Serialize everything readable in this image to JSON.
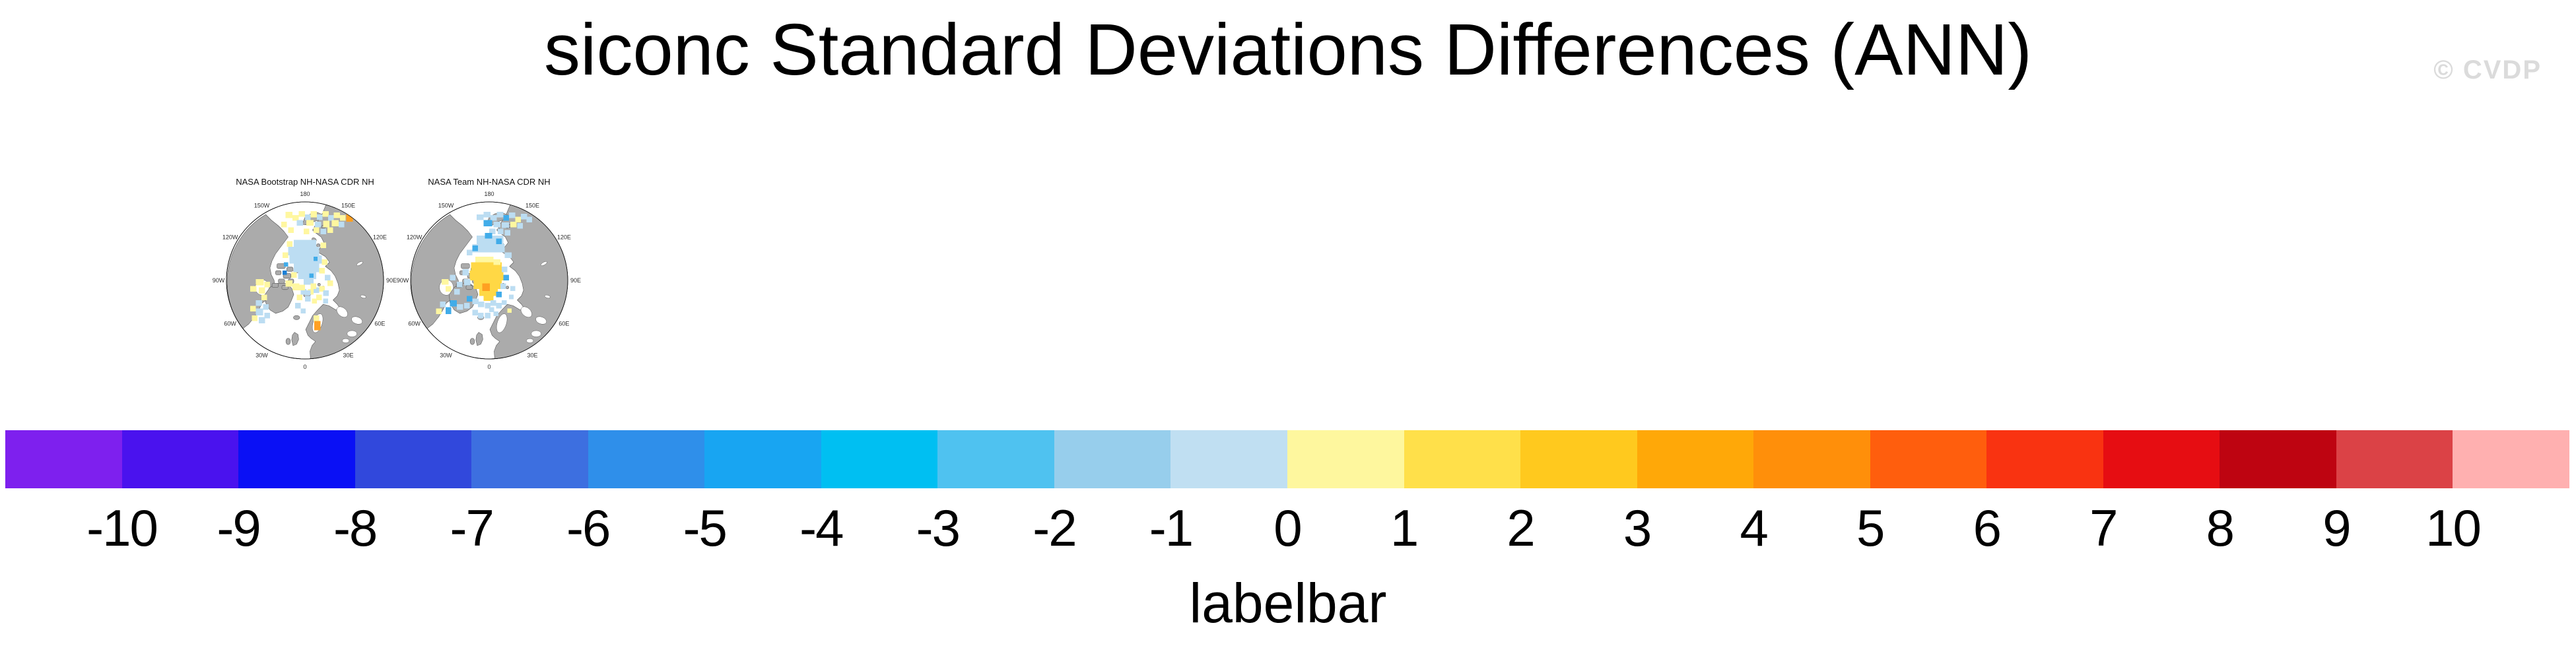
{
  "figure": {
    "title": "siconc Standard Deviations Differences (ANN)",
    "watermark": "© CVDP"
  },
  "maps": [
    {
      "title": "NASA Bootstrap NH-NASA CDR NH",
      "patches": [
        [
          92,
          22,
          10,
          9,
          "y"
        ],
        [
          102,
          27,
          9,
          8,
          "y"
        ],
        [
          111,
          21,
          9,
          8,
          "y"
        ],
        [
          120,
          26,
          8,
          8,
          "lb"
        ],
        [
          128,
          21,
          9,
          9,
          "y"
        ],
        [
          137,
          26,
          8,
          8,
          "lb"
        ],
        [
          145,
          21,
          9,
          8,
          "y"
        ],
        [
          153,
          27,
          8,
          8,
          "lb"
        ],
        [
          161,
          23,
          9,
          8,
          "y"
        ],
        [
          170,
          27,
          8,
          8,
          "y"
        ],
        [
          179,
          24,
          9,
          12,
          "o"
        ],
        [
          108,
          34,
          9,
          8,
          "lb"
        ],
        [
          122,
          34,
          10,
          8,
          "y"
        ],
        [
          134,
          36,
          9,
          8,
          "lb"
        ],
        [
          146,
          35,
          9,
          9,
          "y"
        ],
        [
          158,
          34,
          10,
          9,
          "y"
        ],
        [
          168,
          36,
          8,
          8,
          "lb"
        ],
        [
          96,
          44,
          8,
          8,
          "y"
        ],
        [
          86,
          36,
          8,
          8,
          "y"
        ],
        [
          118,
          46,
          8,
          8,
          "y"
        ],
        [
          132,
          44,
          8,
          8,
          "y"
        ],
        [
          142,
          46,
          8,
          8,
          "lb"
        ],
        [
          152,
          44,
          8,
          8,
          "y"
        ],
        [
          104,
          62,
          32,
          10,
          "lb"
        ],
        [
          96,
          72,
          44,
          12,
          "lb"
        ],
        [
          98,
          84,
          46,
          12,
          "lb"
        ],
        [
          104,
          96,
          36,
          12,
          "lb"
        ],
        [
          110,
          108,
          26,
          10,
          "lb"
        ],
        [
          118,
          118,
          14,
          8,
          "lb"
        ],
        [
          94,
          64,
          8,
          8,
          "y"
        ],
        [
          142,
          66,
          8,
          8,
          "y"
        ],
        [
          88,
          80,
          8,
          8,
          "y"
        ],
        [
          144,
          90,
          8,
          8,
          "y"
        ],
        [
          140,
          102,
          8,
          8,
          "y"
        ],
        [
          100,
          108,
          8,
          8,
          "y"
        ],
        [
          90,
          94,
          6,
          6,
          "mb"
        ],
        [
          132,
          86,
          6,
          6,
          "mb"
        ],
        [
          126,
          110,
          6,
          6,
          "mb"
        ],
        [
          88,
          106,
          6,
          6,
          "db"
        ],
        [
          92,
          120,
          10,
          9,
          "y"
        ],
        [
          102,
          124,
          10,
          10,
          "y"
        ],
        [
          114,
          132,
          8,
          8,
          "lb"
        ],
        [
          124,
          132,
          8,
          8,
          "y"
        ],
        [
          132,
          130,
          8,
          8,
          "lb"
        ],
        [
          140,
          128,
          8,
          8,
          "y"
        ],
        [
          148,
          112,
          8,
          8,
          "lb"
        ],
        [
          152,
          120,
          8,
          8,
          "y"
        ],
        [
          146,
          134,
          8,
          8,
          "lb"
        ],
        [
          136,
          140,
          8,
          8,
          "y"
        ],
        [
          120,
          142,
          8,
          8,
          "lb"
        ],
        [
          108,
          140,
          8,
          8,
          "y"
        ],
        [
          112,
          126,
          8,
          8,
          "y"
        ],
        [
          128,
          124,
          8,
          8,
          "y"
        ],
        [
          120,
          134,
          8,
          7,
          "lb"
        ],
        [
          130,
          146,
          7,
          7,
          "y"
        ],
        [
          146,
          146,
          7,
          7,
          "lb"
        ],
        [
          50,
          118,
          11,
          9,
          "y"
        ],
        [
          42,
          128,
          9,
          8,
          "y"
        ],
        [
          54,
          130,
          9,
          9,
          "y"
        ],
        [
          62,
          122,
          8,
          8,
          "y"
        ],
        [
          58,
          140,
          8,
          8,
          "y"
        ],
        [
          50,
          148,
          9,
          8,
          "lb"
        ],
        [
          42,
          156,
          8,
          8,
          "y"
        ],
        [
          50,
          160,
          10,
          10,
          "lb"
        ],
        [
          60,
          154,
          8,
          8,
          "lb"
        ],
        [
          44,
          170,
          8,
          8,
          "y"
        ],
        [
          54,
          172,
          9,
          9,
          "lb"
        ],
        [
          62,
          166,
          8,
          8,
          "lb"
        ],
        [
          106,
          152,
          8,
          8,
          "lb"
        ],
        [
          114,
          160,
          7,
          7,
          "lb"
        ],
        [
          132,
          170,
          8,
          8,
          "y"
        ],
        [
          133,
          178,
          9,
          13,
          "o"
        ]
      ]
    },
    {
      "title": "NASA Team NH-NASA CDR NH",
      "patches": [
        [
          102,
          26,
          10,
          8,
          "lb"
        ],
        [
          112,
          22,
          10,
          8,
          "lb"
        ],
        [
          122,
          27,
          9,
          8,
          "lb"
        ],
        [
          131,
          22,
          9,
          8,
          "lb"
        ],
        [
          140,
          27,
          8,
          8,
          "mb"
        ],
        [
          148,
          23,
          9,
          8,
          "lb"
        ],
        [
          157,
          29,
          8,
          8,
          "y"
        ],
        [
          165,
          25,
          9,
          8,
          "lb"
        ],
        [
          173,
          29,
          8,
          8,
          "lb"
        ],
        [
          112,
          34,
          12,
          9,
          "mb"
        ],
        [
          126,
          36,
          10,
          8,
          "lb"
        ],
        [
          138,
          37,
          10,
          8,
          "lb"
        ],
        [
          150,
          36,
          9,
          8,
          "y"
        ],
        [
          160,
          38,
          8,
          8,
          "lb"
        ],
        [
          120,
          46,
          9,
          8,
          "lb"
        ],
        [
          132,
          46,
          8,
          8,
          "lb"
        ],
        [
          142,
          48,
          8,
          8,
          "lb"
        ],
        [
          102,
          56,
          38,
          12,
          "lb"
        ],
        [
          96,
          68,
          46,
          12,
          "lb"
        ],
        [
          142,
          80,
          10,
          8,
          "lb"
        ],
        [
          88,
          76,
          8,
          8,
          "lb"
        ],
        [
          114,
          52,
          10,
          8,
          "mb"
        ],
        [
          130,
          60,
          8,
          8,
          "mb"
        ],
        [
          96,
          70,
          8,
          8,
          "mb"
        ],
        [
          100,
          86,
          26,
          8,
          "y"
        ],
        [
          94,
          94,
          44,
          12,
          "g"
        ],
        [
          92,
          106,
          48,
          14,
          "g"
        ],
        [
          98,
          120,
          40,
          12,
          "g"
        ],
        [
          106,
          132,
          26,
          10,
          "g"
        ],
        [
          112,
          142,
          14,
          7,
          "g"
        ],
        [
          110,
          124,
          11,
          11,
          "o"
        ],
        [
          126,
          90,
          10,
          8,
          "y"
        ],
        [
          138,
          100,
          8,
          8,
          "lb"
        ],
        [
          140,
          112,
          8,
          8,
          "mb"
        ],
        [
          136,
          124,
          8,
          8,
          "lb"
        ],
        [
          130,
          136,
          8,
          8,
          "mb"
        ],
        [
          82,
          104,
          9,
          9,
          "lb"
        ],
        [
          84,
          118,
          9,
          9,
          "lb"
        ],
        [
          74,
          122,
          8,
          8,
          "lb"
        ],
        [
          64,
          112,
          8,
          8,
          "lb"
        ],
        [
          52,
          118,
          10,
          8,
          "y"
        ],
        [
          58,
          128,
          8,
          8,
          "y"
        ],
        [
          70,
          132,
          8,
          8,
          "lb"
        ],
        [
          88,
          142,
          8,
          8,
          "mb"
        ],
        [
          96,
          146,
          9,
          8,
          "lb"
        ],
        [
          104,
          150,
          9,
          8,
          "lb"
        ],
        [
          114,
          152,
          8,
          8,
          "lb"
        ],
        [
          122,
          148,
          8,
          8,
          "lb"
        ],
        [
          130,
          152,
          8,
          8,
          "lb"
        ],
        [
          138,
          148,
          7,
          7,
          "lb"
        ],
        [
          84,
          152,
          8,
          8,
          "lb"
        ],
        [
          74,
          154,
          9,
          8,
          "lb"
        ],
        [
          64,
          148,
          10,
          9,
          "mb"
        ],
        [
          58,
          158,
          8,
          10,
          "mb"
        ],
        [
          50,
          150,
          8,
          8,
          "lb"
        ],
        [
          96,
          162,
          8,
          8,
          "lb"
        ],
        [
          104,
          166,
          8,
          8,
          "lb"
        ],
        [
          114,
          166,
          8,
          8,
          "lb"
        ],
        [
          44,
          160,
          8,
          8,
          "y"
        ],
        [
          120,
          158,
          7,
          7,
          "lb"
        ],
        [
          126,
          164,
          7,
          7,
          "lb"
        ],
        [
          146,
          160,
          6,
          6,
          "y"
        ],
        [
          150,
          128,
          7,
          7,
          "lb"
        ],
        [
          148,
          140,
          7,
          7,
          "lb"
        ]
      ]
    }
  ],
  "map_common": {
    "lon_labels": [
      {
        "text": "180",
        "angle": 0
      },
      {
        "text": "150E",
        "angle": 30
      },
      {
        "text": "120E",
        "angle": 60
      },
      {
        "text": "90E",
        "angle": 90
      },
      {
        "text": "60E",
        "angle": 120
      },
      {
        "text": "30E",
        "angle": 150
      },
      {
        "text": "0",
        "angle": 180
      },
      {
        "text": "30W",
        "angle": 210
      },
      {
        "text": "60W",
        "angle": 240
      },
      {
        "text": "90W",
        "angle": 270
      },
      {
        "text": "120W",
        "angle": 300
      },
      {
        "text": "150W",
        "angle": 330
      }
    ],
    "colors": {
      "land": "#ababab",
      "ocean": "#ffffff",
      "coast": "#4d4d4d",
      "palette": {
        "lb": "#bcddf2",
        "mb": "#41ace9",
        "db": "#1b7fd6",
        "y": "#fff7a0",
        "g": "#ffd845",
        "o": "#ffa022"
      }
    }
  },
  "colorbar": {
    "caption": "labelbar",
    "tick_labels": [
      "-10",
      "-9",
      "-8",
      "-7",
      "-6",
      "-5",
      "-4",
      "-3",
      "-2",
      "-1",
      "0",
      "1",
      "2",
      "3",
      "4",
      "5",
      "6",
      "7",
      "8",
      "9",
      "10"
    ],
    "colors": [
      "#7e20ee",
      "#4a12ee",
      "#0a10f5",
      "#3148dc",
      "#3d6fe0",
      "#2f8fea",
      "#18a5f2",
      "#00bff2",
      "#4fc2f0",
      "#97ceec",
      "#c0dff2",
      "#fef79e",
      "#ffe04a",
      "#ffc91e",
      "#ffa808",
      "#ff8f0a",
      "#ff5e0d",
      "#f93311",
      "#e60d12",
      "#be0411",
      "#db4246",
      "#ffb0b0"
    ]
  },
  "chart_data": {
    "type": "heatmap",
    "title": "siconc Standard Deviations Differences (ANN)",
    "panels": [
      {
        "title": "NASA Bootstrap NH-NASA CDR NH",
        "projection": "north polar stereographic",
        "summary": "Central Arctic dominated by light blue (-1 to 0) cells with scattered pale yellow (0 to 1) cells over the Canadian Archipelago, Hudson Bay, Baffin/Labrador sector and Siberian coast; isolated orange (4 to 5) cells near the 150E coast and in the Gulf of Bothnia."
      },
      {
        "title": "NASA Team NH-NASA CDR NH",
        "projection": "north polar stereographic",
        "summary": "Large yellow-gold (1 to 3) anomaly over the central Arctic with one orange (4 to 5) cell, surrounded by light and medium blue (-3 to 0) cells along the Siberian shelf, Atlantic sector and Canadian sector."
      }
    ],
    "colorbar_label": "labelbar",
    "colorbar_levels": [
      -10,
      -9,
      -8,
      -7,
      -6,
      -5,
      -4,
      -3,
      -2,
      -1,
      0,
      1,
      2,
      3,
      4,
      5,
      6,
      7,
      8,
      9,
      10
    ],
    "longitude_ticks": [
      "180",
      "150W",
      "120W",
      "90W",
      "60W",
      "30W",
      "0",
      "30E",
      "60E",
      "90E",
      "120E",
      "150E"
    ]
  }
}
